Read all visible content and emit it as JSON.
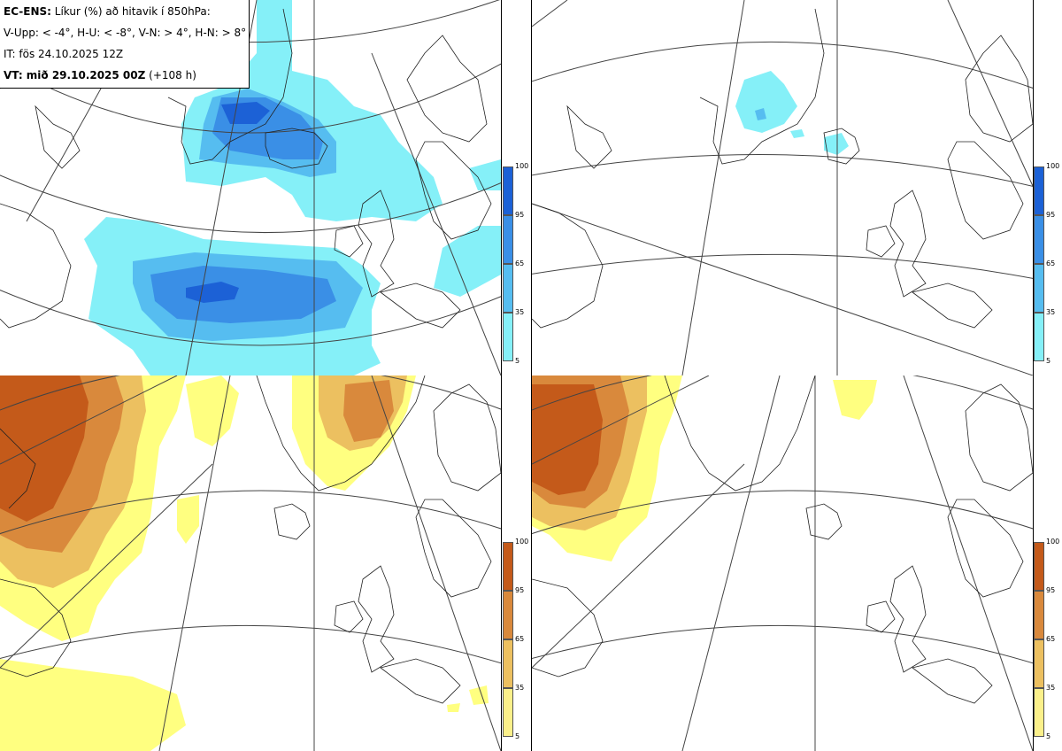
{
  "header": {
    "model": "EC-ENS:",
    "title": "Líkur (%) að hitavik í 850hPa:",
    "thresholds": "V-Upp: < -4°, H-U: < -8°, V-N: > 4°, H-N: > 8°",
    "issue_time": "IT: fös 24.10.2025 12Z",
    "valid_label": "VT: mið 29.10.2025 00Z",
    "valid_offset": "(+108 h)"
  },
  "legend": {
    "ticks": [
      "100",
      "95",
      "65",
      "35",
      "5"
    ],
    "cold_colors": [
      "#1c61d6",
      "#3a8fe6",
      "#56bdf0",
      "#85f0f8",
      "#bdfdfd"
    ],
    "warm_colors": [
      "#c45a1a",
      "#d9893c",
      "#ecc060",
      "#fbf08a",
      "#ffff80"
    ]
  },
  "panels": [
    {
      "id": "upper-left",
      "field": "cold anomaly < -4°",
      "palette": "cold"
    },
    {
      "id": "upper-right",
      "field": "cold anomaly < -8°",
      "palette": "cold"
    },
    {
      "id": "lower-left",
      "field": "warm anomaly > 4°",
      "palette": "warm"
    },
    {
      "id": "lower-right",
      "field": "warm anomaly > 8°",
      "palette": "warm"
    }
  ]
}
